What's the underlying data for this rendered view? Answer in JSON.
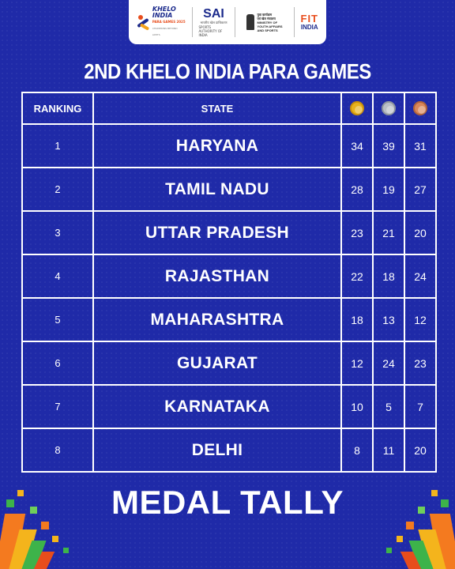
{
  "header": {
    "logos": {
      "khelo": {
        "line1": "KHELO",
        "line2": "INDIA",
        "line3": "PARA GAMES 2025",
        "line4": "CHAMPIONS BEYOND LIMITS"
      },
      "sai": {
        "name": "SAI",
        "sub1": "भारतीय खेल प्राधिकरण",
        "sub2": "SPORTS AUTHORITY OF INDIA"
      },
      "ministry": {
        "line1": "युवा कार्यक्रम",
        "line2": "एवं खेल मंत्रालय",
        "line3": "MINISTRY OF",
        "line4": "YOUTH AFFAIRS",
        "line5": "AND SPORTS"
      },
      "fit": {
        "line1": "FIT",
        "line2": "INDIA"
      }
    }
  },
  "title": "2ND KHELO INDIA PARA GAMES",
  "table": {
    "headers": {
      "ranking": "RANKING",
      "state": "STATE"
    },
    "medal_icons": [
      "gold-medal-icon",
      "silver-medal-icon",
      "bronze-medal-icon"
    ],
    "rows": [
      {
        "rank": "1",
        "state": "HARYANA",
        "gold": "34",
        "silver": "39",
        "bronze": "31"
      },
      {
        "rank": "2",
        "state": "TAMIL NADU",
        "gold": "28",
        "silver": "19",
        "bronze": "27"
      },
      {
        "rank": "3",
        "state": "UTTAR PRADESH",
        "gold": "23",
        "silver": "21",
        "bronze": "20"
      },
      {
        "rank": "4",
        "state": "RAJASTHAN",
        "gold": "22",
        "silver": "18",
        "bronze": "24"
      },
      {
        "rank": "5",
        "state": "MAHARASHTRA",
        "gold": "18",
        "silver": "13",
        "bronze": "12"
      },
      {
        "rank": "6",
        "state": "GUJARAT",
        "gold": "12",
        "silver": "24",
        "bronze": "23"
      },
      {
        "rank": "7",
        "state": "KARNATAKA",
        "gold": "10",
        "silver": "5",
        "bronze": "7"
      },
      {
        "rank": "8",
        "state": "DELHI",
        "gold": "8",
        "silver": "11",
        "bronze": "20"
      }
    ]
  },
  "footer": {
    "title": "MEDAL TALLY"
  },
  "colors": {
    "background": "#1f2aa8",
    "gold": "#e8b21c",
    "silver": "#b9bfc6",
    "bronze": "#d9875a"
  }
}
